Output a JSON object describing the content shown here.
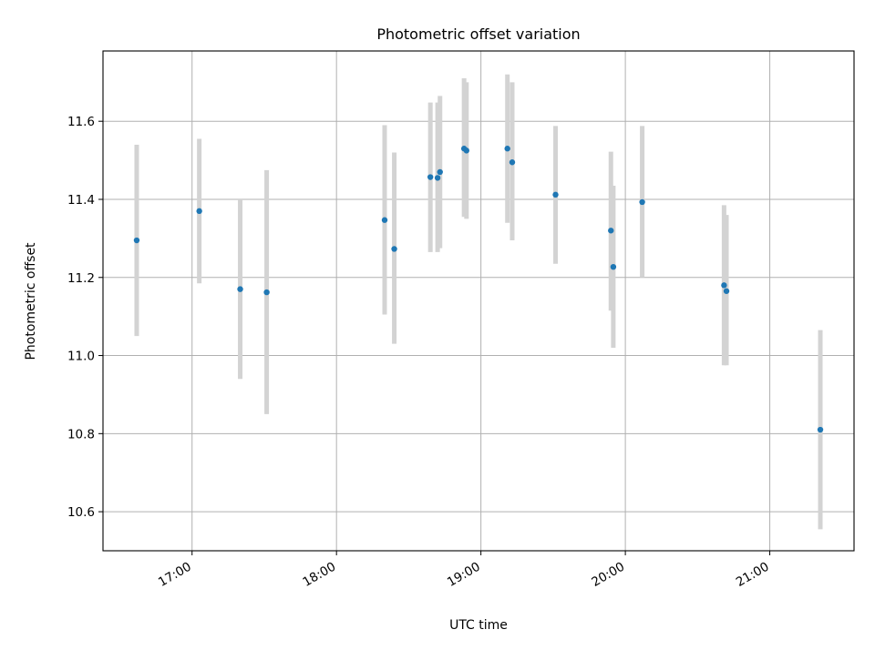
{
  "colors": {
    "marker": "#1f77b4",
    "errorbar": "#d3d3d3",
    "grid": "#b0b0b0",
    "axes": "#000000",
    "background": "#ffffff"
  },
  "chart_data": {
    "type": "scatter",
    "title": "Photometric offset variation",
    "xlabel": "UTC time",
    "ylabel": "Photometric offset",
    "x_is_time": true,
    "xlim": [
      "16:23",
      "21:35"
    ],
    "ylim": [
      10.5,
      11.78
    ],
    "grid": true,
    "x_tick_labels": [
      "17:00",
      "18:00",
      "19:00",
      "20:00",
      "21:00"
    ],
    "y_tick_labels": [
      "10.6",
      "10.8",
      "11.0",
      "11.2",
      "11.4",
      "11.6"
    ],
    "series": [
      {
        "marker": "point",
        "points": [
          {
            "x": "16:37",
            "y": 11.295,
            "yerr_low": 11.05,
            "yerr_high": 11.54
          },
          {
            "x": "17:03",
            "y": 11.37,
            "yerr_low": 11.185,
            "yerr_high": 11.555
          },
          {
            "x": "17:20",
            "y": 11.17,
            "yerr_low": 10.94,
            "yerr_high": 11.4
          },
          {
            "x": "17:31",
            "y": 11.162,
            "yerr_low": 10.85,
            "yerr_high": 11.475
          },
          {
            "x": "18:20",
            "y": 11.347,
            "yerr_low": 11.105,
            "yerr_high": 11.59
          },
          {
            "x": "18:24",
            "y": 11.273,
            "yerr_low": 11.03,
            "yerr_high": 11.52
          },
          {
            "x": "18:39",
            "y": 11.457,
            "yerr_low": 11.265,
            "yerr_high": 11.648
          },
          {
            "x": "18:42",
            "y": 11.455,
            "yerr_low": 11.265,
            "yerr_high": 11.648
          },
          {
            "x": "18:43",
            "y": 11.47,
            "yerr_low": 11.275,
            "yerr_high": 11.665
          },
          {
            "x": "18:53",
            "y": 11.53,
            "yerr_low": 11.355,
            "yerr_high": 11.71
          },
          {
            "x": "18:54",
            "y": 11.525,
            "yerr_low": 11.35,
            "yerr_high": 11.7
          },
          {
            "x": "19:11",
            "y": 11.53,
            "yerr_low": 11.34,
            "yerr_high": 11.72
          },
          {
            "x": "19:13",
            "y": 11.495,
            "yerr_low": 11.295,
            "yerr_high": 11.7
          },
          {
            "x": "19:31",
            "y": 11.412,
            "yerr_low": 11.235,
            "yerr_high": 11.588
          },
          {
            "x": "19:54",
            "y": 11.32,
            "yerr_low": 11.115,
            "yerr_high": 11.522
          },
          {
            "x": "19:55",
            "y": 11.227,
            "yerr_low": 11.02,
            "yerr_high": 11.435
          },
          {
            "x": "20:07",
            "y": 11.393,
            "yerr_low": 11.2,
            "yerr_high": 11.588
          },
          {
            "x": "20:41",
            "y": 11.18,
            "yerr_low": 10.975,
            "yerr_high": 11.385
          },
          {
            "x": "20:42",
            "y": 11.165,
            "yerr_low": 10.975,
            "yerr_high": 11.36
          },
          {
            "x": "21:21",
            "y": 10.81,
            "yerr_low": 10.555,
            "yerr_high": 11.065
          }
        ]
      }
    ]
  }
}
